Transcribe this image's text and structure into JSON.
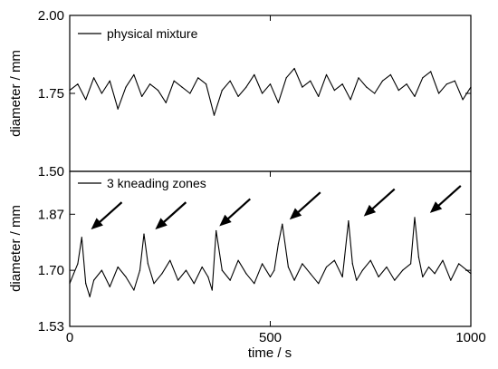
{
  "chart_data": [
    {
      "type": "line",
      "panel": "top",
      "ylabel": "diameter / mm",
      "xlabel": "",
      "xlim": [
        0,
        1000
      ],
      "ylim": [
        1.5,
        2.0
      ],
      "yticks": [
        1.5,
        1.75,
        2.0
      ],
      "ytick_labels": [
        "1.50",
        "1.75",
        "2.00"
      ],
      "grid": false,
      "legend_position": "top-left",
      "series": [
        {
          "name": "physical mixture",
          "color": "#000000",
          "x": [
            0,
            20,
            40,
            60,
            80,
            100,
            120,
            140,
            160,
            180,
            200,
            220,
            240,
            260,
            280,
            300,
            320,
            340,
            360,
            380,
            400,
            420,
            440,
            460,
            480,
            500,
            520,
            540,
            560,
            580,
            600,
            620,
            640,
            660,
            680,
            700,
            720,
            740,
            760,
            780,
            800,
            820,
            840,
            860,
            880,
            900,
            920,
            940,
            960,
            980,
            1000
          ],
          "y": [
            1.76,
            1.78,
            1.73,
            1.8,
            1.75,
            1.79,
            1.7,
            1.77,
            1.81,
            1.74,
            1.78,
            1.76,
            1.72,
            1.79,
            1.77,
            1.75,
            1.8,
            1.78,
            1.68,
            1.76,
            1.79,
            1.74,
            1.77,
            1.81,
            1.75,
            1.78,
            1.72,
            1.8,
            1.83,
            1.77,
            1.79,
            1.74,
            1.81,
            1.76,
            1.78,
            1.73,
            1.8,
            1.77,
            1.75,
            1.79,
            1.81,
            1.76,
            1.78,
            1.74,
            1.8,
            1.82,
            1.75,
            1.78,
            1.79,
            1.73,
            1.77
          ]
        }
      ]
    },
    {
      "type": "line",
      "panel": "bottom",
      "ylabel": "diameter / mm",
      "xlabel": "time / s",
      "xlim": [
        0,
        1000
      ],
      "ylim": [
        1.53,
        2.0
      ],
      "yticks": [
        1.53,
        1.7,
        1.87
      ],
      "ytick_labels": [
        "1.53",
        "1.70",
        "1.87"
      ],
      "xticks": [
        0,
        500,
        1000
      ],
      "xtick_labels": [
        "0",
        "500",
        "1000"
      ],
      "grid": false,
      "legend_position": "top-left",
      "series": [
        {
          "name": "3 kneading zones",
          "color": "#000000",
          "x": [
            0,
            10,
            20,
            30,
            40,
            50,
            60,
            80,
            100,
            120,
            140,
            160,
            175,
            185,
            195,
            210,
            230,
            250,
            270,
            290,
            310,
            330,
            345,
            355,
            365,
            380,
            400,
            420,
            440,
            460,
            480,
            500,
            510,
            520,
            530,
            545,
            560,
            580,
            600,
            620,
            640,
            660,
            680,
            695,
            705,
            715,
            730,
            750,
            770,
            790,
            810,
            830,
            850,
            860,
            870,
            880,
            895,
            910,
            930,
            950,
            970,
            990,
            1000
          ],
          "y": [
            1.66,
            1.69,
            1.72,
            1.8,
            1.66,
            1.62,
            1.67,
            1.7,
            1.65,
            1.71,
            1.68,
            1.64,
            1.7,
            1.81,
            1.72,
            1.66,
            1.69,
            1.73,
            1.67,
            1.7,
            1.66,
            1.71,
            1.68,
            1.64,
            1.82,
            1.7,
            1.67,
            1.73,
            1.69,
            1.66,
            1.72,
            1.68,
            1.7,
            1.78,
            1.84,
            1.71,
            1.67,
            1.72,
            1.69,
            1.66,
            1.71,
            1.73,
            1.68,
            1.85,
            1.72,
            1.67,
            1.7,
            1.73,
            1.68,
            1.71,
            1.67,
            1.7,
            1.72,
            1.86,
            1.74,
            1.68,
            1.71,
            1.69,
            1.73,
            1.67,
            1.72,
            1.7,
            1.69
          ]
        }
      ],
      "annotations": [
        {
          "type": "arrow",
          "target_x": 35,
          "target_y": 1.81
        },
        {
          "type": "arrow",
          "target_x": 195,
          "target_y": 1.81
        },
        {
          "type": "arrow",
          "target_x": 355,
          "target_y": 1.82
        },
        {
          "type": "arrow",
          "target_x": 530,
          "target_y": 1.84
        },
        {
          "type": "arrow",
          "target_x": 715,
          "target_y": 1.85
        },
        {
          "type": "arrow",
          "target_x": 880,
          "target_y": 1.86
        }
      ]
    }
  ]
}
